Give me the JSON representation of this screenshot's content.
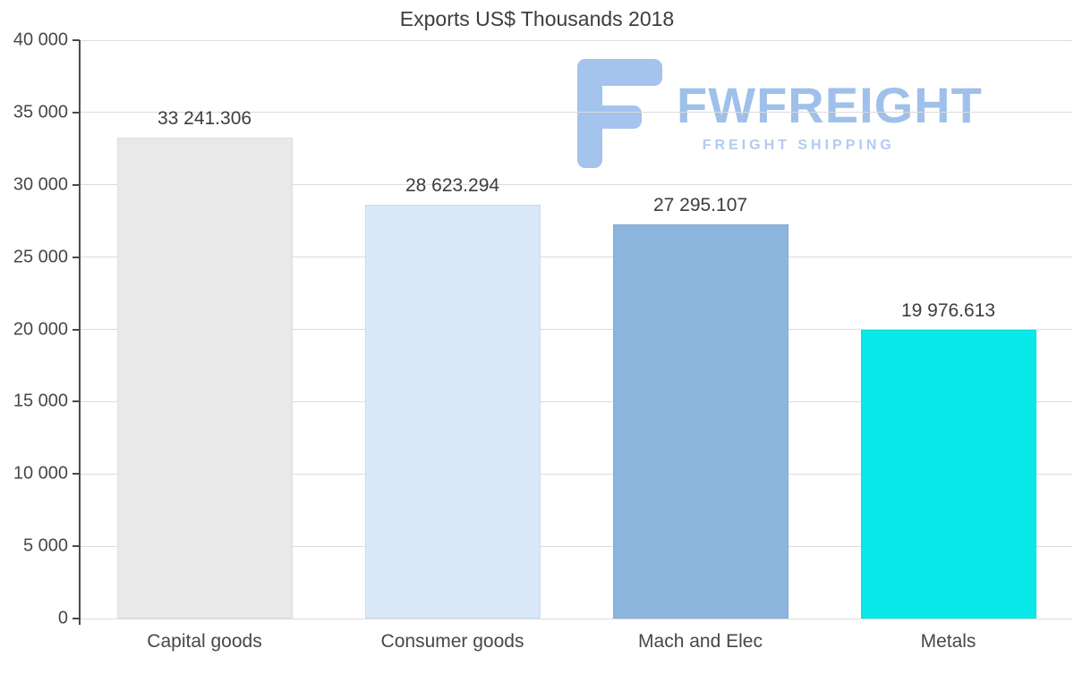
{
  "chart_data": {
    "type": "bar",
    "title": "Exports US$ Thousands 2018",
    "categories": [
      "Capital goods",
      "Consumer goods",
      "Mach and Elec",
      "Metals"
    ],
    "values": [
      33241.306,
      28623.294,
      27295.107,
      19976.613
    ],
    "value_labels": [
      "33 241.306",
      "28 623.294",
      "27 295.107",
      "19 976.613"
    ],
    "bar_colors": [
      "#e9e9e9",
      "#d9e7f8",
      "#8cb5de",
      "#09e9e9"
    ],
    "xlabel": "",
    "ylabel": "",
    "ylim": [
      0,
      40000
    ],
    "ytick_step": 5000,
    "ytick_labels": [
      "0",
      "5 000",
      "10 000",
      "15 000",
      "20 000",
      "25 000",
      "30 000",
      "35 000",
      "40 000"
    ],
    "grid": true,
    "legend": "none"
  },
  "watermark": {
    "brand": "FWFREIGHT",
    "tagline": "FREIGHT SHIPPING",
    "brand_color": "#9fc0ea",
    "tagline_color": "#b2cbf0",
    "icon_color": "#a4c3ed"
  }
}
